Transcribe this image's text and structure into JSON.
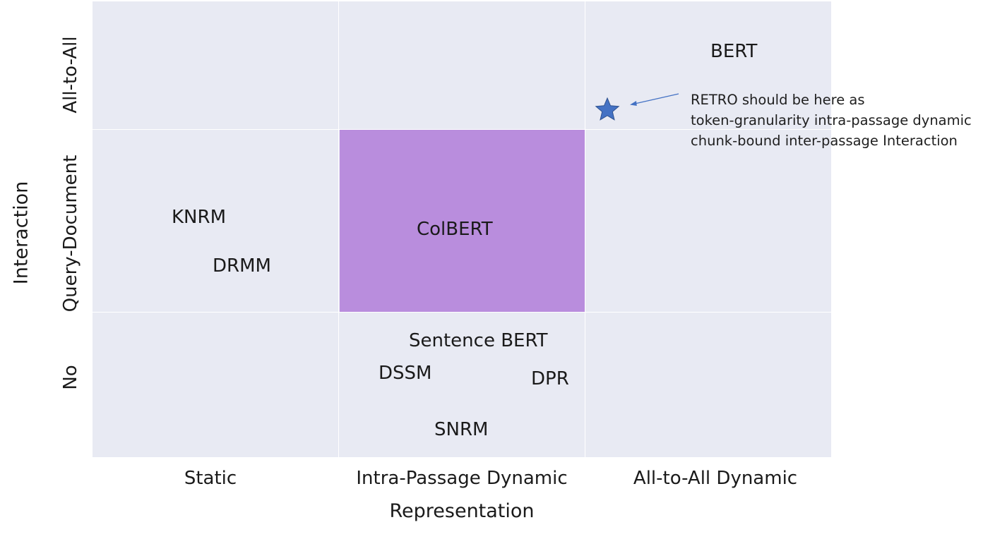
{
  "diagram": {
    "x_axis": {
      "label": "Representation",
      "ticks": [
        "Static",
        "Intra-Passage Dynamic",
        "All-to-All Dynamic"
      ]
    },
    "y_axis": {
      "label": "Interaction",
      "ticks": [
        "No",
        "Query-Document",
        "All-to-All"
      ]
    },
    "highlight_cell": {
      "column": "Intra-Passage Dynamic",
      "row": "Query-Document",
      "color": "#b98ddd"
    },
    "background_color": "#e8eaf3",
    "models": {
      "bert": "BERT",
      "knrm": "KNRM",
      "drmm": "DRMM",
      "colbert": "ColBERT",
      "sentence_bert": "Sentence BERT",
      "dssm": "DSSM",
      "dpr": "DPR",
      "snrm": "SNRM"
    },
    "annotation": {
      "marker": "star-icon",
      "marker_color": "#4472c4",
      "lines": [
        "RETRO should be here as",
        "token-granularity intra-passage dynamic",
        "chunk-bound inter-passage Interaction"
      ]
    }
  }
}
